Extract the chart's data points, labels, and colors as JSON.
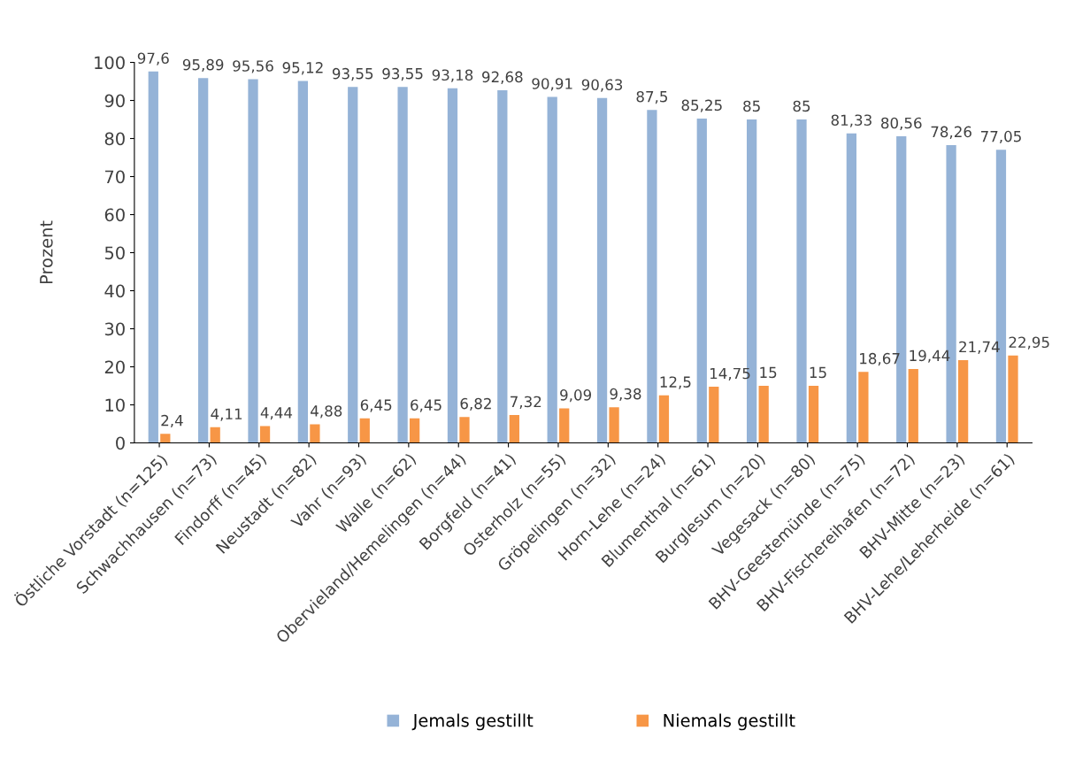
{
  "chart_data": {
    "type": "bar",
    "ylabel": "Prozent",
    "categories": [
      "Östliche Vorstadt (n=125)",
      "Schwachhausen (n=73)",
      "Findorff (n=45)",
      "Neustadt (n=82)",
      "Vahr (n=93)",
      "Walle (n=62)",
      "Obervieland/Hemelingen (n=44)",
      "Borgfeld (n=41)",
      "Osterholz (n=55)",
      "Gröpelingen (n=32)",
      "Horn-Lehe (n=24)",
      "Blumenthal (n=61)",
      "Burglesum (n=20)",
      "Vegesack (n=80)",
      "BHV-Geestemünde (n=75)",
      "BHV-Fischereihafen (n=72)",
      "BHV-Mitte (n=23)",
      "BHV-Lehe/Leherheide (n=61)"
    ],
    "series": [
      {
        "name": "Jemals gestillt",
        "color": "#95b3d7",
        "values": [
          97.6,
          95.89,
          95.56,
          95.12,
          93.55,
          93.55,
          93.18,
          92.68,
          90.91,
          90.63,
          87.5,
          85.25,
          85,
          85,
          81.33,
          80.56,
          78.26,
          77.05
        ],
        "value_labels": [
          "97,6",
          "95,89",
          "95,56",
          "95,12",
          "93,55",
          "93,55",
          "93,18",
          "92,68",
          "90,91",
          "90,63",
          "87,5",
          "85,25",
          "85",
          "85",
          "81,33",
          "80,56",
          "78,26",
          "77,05"
        ]
      },
      {
        "name": "Niemals gestillt",
        "color": "#f79646",
        "values": [
          2.4,
          4.11,
          4.44,
          4.88,
          6.45,
          6.45,
          6.82,
          7.32,
          9.09,
          9.38,
          12.5,
          14.75,
          15,
          15,
          18.67,
          19.44,
          21.74,
          22.95
        ],
        "value_labels": [
          "2,4",
          "4,11",
          "4,44",
          "4,88",
          "6,45",
          "6,45",
          "6,82",
          "7,32",
          "9,09",
          "9,38",
          "12,5",
          "14,75",
          "15",
          "15",
          "18,67",
          "19,44",
          "21,74",
          "22,95"
        ]
      }
    ],
    "ylim": [
      0,
      100
    ],
    "yticks": [
      0,
      10,
      20,
      30,
      40,
      50,
      60,
      70,
      80,
      90,
      100
    ],
    "grid": false,
    "legend": "bottom"
  }
}
